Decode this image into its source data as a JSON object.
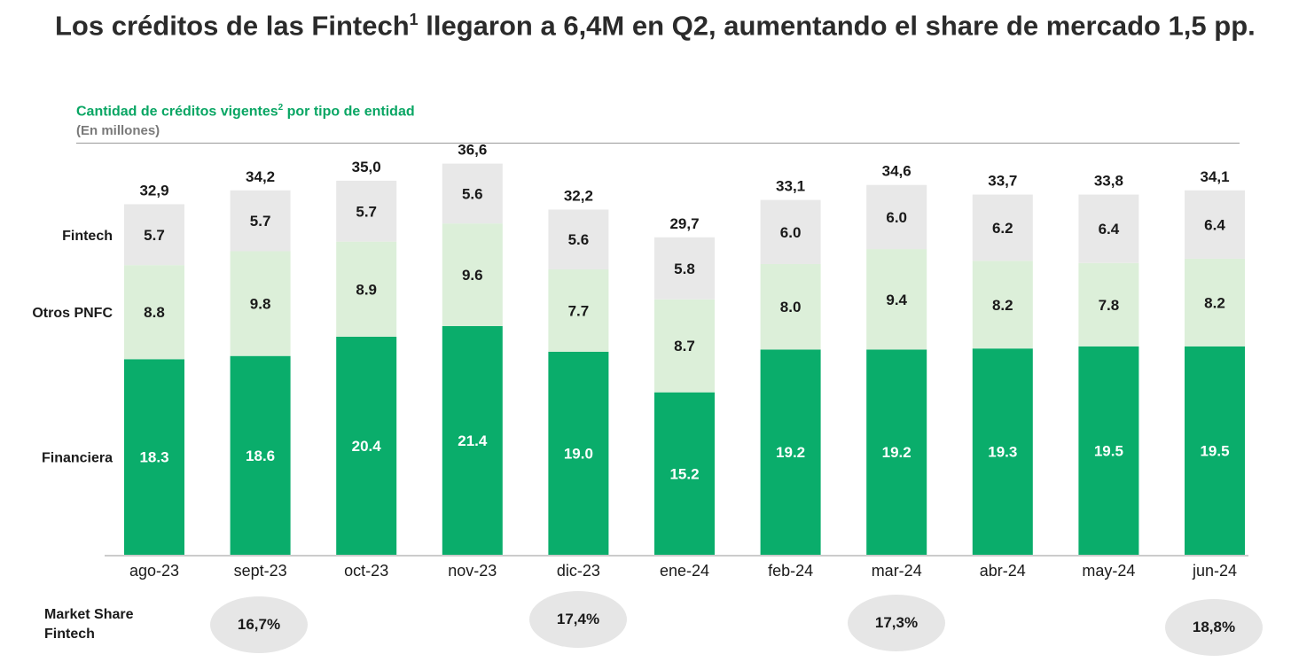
{
  "title": "Los créditos de las Fintech",
  "title_sup": "1",
  "title_rest": " llegaron a 6,4M en Q2, aumentando el share de mercado 1,5 pp.",
  "subtitle": "Cantidad de créditos vigentes",
  "subtitle_sup": "2",
  "subtitle_rest": " por tipo de entidad",
  "units": "(En millones)",
  "market_share": {
    "label_line1": "Market Share",
    "label_line2": "Fintech",
    "items": [
      {
        "month": "sept-23",
        "value": "16,7%"
      },
      {
        "month": "dic-23",
        "value": "17,4%"
      },
      {
        "month": "mar-24",
        "value": "17,3%"
      },
      {
        "month": "jun-24",
        "value": "18,8%"
      }
    ]
  },
  "colors": {
    "financiera": "#0aad6b",
    "otros_pnfc": "#dcefd9",
    "fintech": "#e8e8e8",
    "ms_pill": "#e6e6e6"
  },
  "chart_data": {
    "type": "bar",
    "stacked": true,
    "categories": [
      "ago-23",
      "sept-23",
      "oct-23",
      "nov-23",
      "dic-23",
      "ene-24",
      "feb-24",
      "mar-24",
      "abr-24",
      "may-24",
      "jun-24"
    ],
    "series": [
      {
        "name": "Financiera",
        "values": [
          18.3,
          18.6,
          20.4,
          21.4,
          19.0,
          15.2,
          19.2,
          19.2,
          19.3,
          19.5,
          19.5
        ],
        "labels": [
          "18.3",
          "18.6",
          "20.4",
          "21.4",
          "19.0",
          "15.2",
          "19.2",
          "19.2",
          "19.3",
          "19.5",
          "19.5"
        ]
      },
      {
        "name": "Otros PNFC",
        "values": [
          8.8,
          9.8,
          8.9,
          9.6,
          7.7,
          8.7,
          8.0,
          9.4,
          8.2,
          7.8,
          8.2
        ],
        "labels": [
          "8.8",
          "9.8",
          "8.9",
          "9.6",
          "7.7",
          "8.7",
          "8.0",
          "9.4",
          "8.2",
          "7.8",
          "8.2"
        ]
      },
      {
        "name": "Fintech",
        "values": [
          5.7,
          5.7,
          5.7,
          5.6,
          5.6,
          5.8,
          6.0,
          6.0,
          6.2,
          6.4,
          6.4
        ],
        "labels": [
          "5.7",
          "5.7",
          "5.7",
          "5.6",
          "5.6",
          "5.8",
          "6.0",
          "6.0",
          "6.2",
          "6.4",
          "6.4"
        ]
      }
    ],
    "totals": [
      "32,9",
      "34,2",
      "35,0",
      "36,6",
      "32,2",
      "29,7",
      "33,1",
      "34,6",
      "33,7",
      "33,8",
      "34,1"
    ],
    "legend": [
      "Fintech",
      "Otros PNFC",
      "Financiera"
    ],
    "ylim": [
      0,
      40
    ],
    "grid": false
  }
}
